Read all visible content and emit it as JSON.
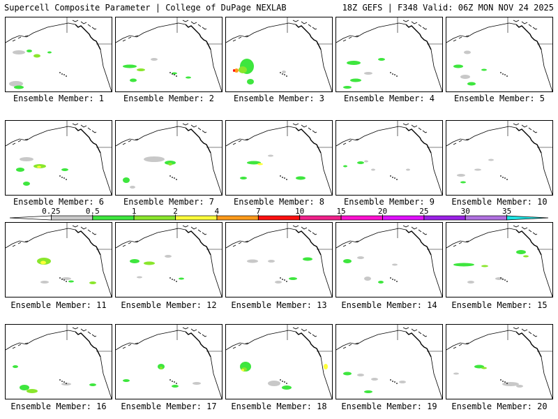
{
  "header": {
    "left_title": "Supercell Composite Parameter | College of DuPage NEXLAB",
    "right_title": "18Z GEFS | F348 Valid: 06Z MON NOV 24 2025"
  },
  "colorbar": {
    "ticks": [
      "0.25",
      "0.5",
      "1",
      "2",
      "4",
      "7",
      "10",
      "15",
      "20",
      "25",
      "30",
      "35"
    ],
    "colors": [
      "#ffffff",
      "#c8c8c8",
      "#3ee63e",
      "#8ae62c",
      "#ffff3a",
      "#ff9a1a",
      "#ff1010",
      "#f0208a",
      "#ff10d0",
      "#e010ff",
      "#9a20e6",
      "#b070e0",
      "#20e6e6"
    ]
  },
  "panels": [
    {
      "label": "Ensemble Member: 1"
    },
    {
      "label": "Ensemble Member: 2"
    },
    {
      "label": "Ensemble Member: 3"
    },
    {
      "label": "Ensemble Member: 4"
    },
    {
      "label": "Ensemble Member: 5"
    },
    {
      "label": "Ensemble Member: 6"
    },
    {
      "label": "Ensemble Member: 7"
    },
    {
      "label": "Ensemble Member: 8"
    },
    {
      "label": "Ensemble Member: 9"
    },
    {
      "label": "Ensemble Member: 10"
    },
    {
      "label": "Ensemble Member: 11"
    },
    {
      "label": "Ensemble Member: 12"
    },
    {
      "label": "Ensemble Member: 13"
    },
    {
      "label": "Ensemble Member: 14"
    },
    {
      "label": "Ensemble Member: 15"
    },
    {
      "label": "Ensemble Member: 16"
    },
    {
      "label": "Ensemble Member: 17"
    },
    {
      "label": "Ensemble Member: 18"
    },
    {
      "label": "Ensemble Member: 19"
    },
    {
      "label": "Ensemble Member: 20"
    }
  ]
}
